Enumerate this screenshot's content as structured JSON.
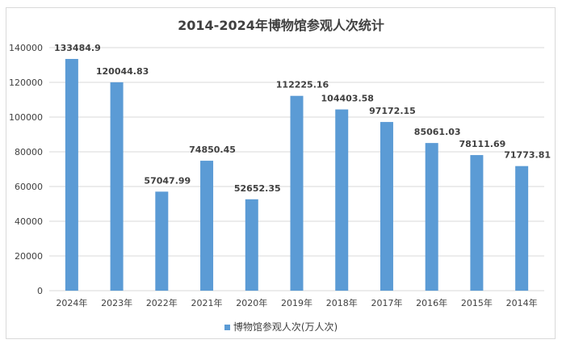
{
  "chart_data": {
    "type": "bar",
    "title": "2014-2024年博物馆参观人次统计",
    "categories": [
      "2024年",
      "2023年",
      "2022年",
      "2021年",
      "2020年",
      "2019年",
      "2018年",
      "2017年",
      "2016年",
      "2015年",
      "2014年"
    ],
    "series": [
      {
        "name": "博物馆参观人次(万人次)",
        "values": [
          133484.9,
          120044.83,
          57047.99,
          74850.45,
          52652.35,
          112225.16,
          104403.58,
          97172.15,
          85061.03,
          78111.69,
          71773.81
        ],
        "labels": [
          "133484.9",
          "120044.83",
          "57047.99",
          "74850.45",
          "52652.35",
          "112225.16",
          "104403.58",
          "97172.15",
          "85061.03",
          "78111.69",
          "71773.81"
        ]
      }
    ],
    "yticks": [
      "0",
      "20000",
      "40000",
      "60000",
      "80000",
      "100000",
      "120000",
      "140000"
    ],
    "ylim": [
      0,
      140000
    ],
    "xlabel": "",
    "ylabel": "",
    "grid": true,
    "legend": "bottom",
    "colors": {
      "bar": "#5b9bd5",
      "grid": "#d9d9d9",
      "text": "#404040"
    }
  }
}
